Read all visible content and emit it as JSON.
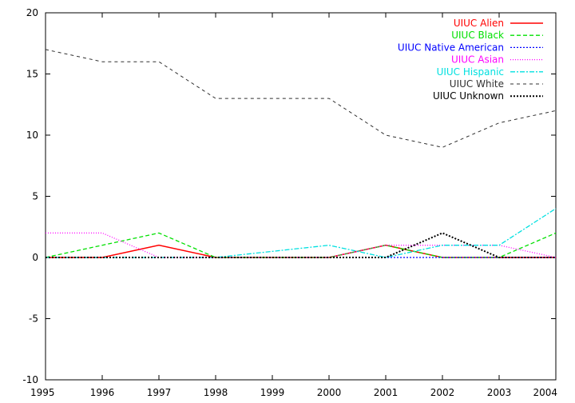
{
  "chart_data": {
    "type": "line",
    "x": [
      1995,
      1996,
      1997,
      1998,
      1999,
      2000,
      2001,
      2002,
      2003,
      2004
    ],
    "xlim": [
      1995,
      2004
    ],
    "ylim": [
      -10,
      20
    ],
    "xticks": [
      "1995",
      "1996",
      "1997",
      "1998",
      "1999",
      "2000",
      "2001",
      "2002",
      "2003",
      "2004"
    ],
    "yticks": [
      "-10",
      "-5",
      "0",
      "5",
      "10",
      "15",
      "20"
    ],
    "legend_position": "top-right",
    "grid": false,
    "series": [
      {
        "name": "UIUC Alien",
        "color": "#ff0000",
        "dash": "",
        "width": 1.5,
        "values": [
          0,
          0,
          1,
          0,
          0,
          0,
          1,
          0,
          0,
          0
        ]
      },
      {
        "name": "UIUC Black",
        "color": "#00e000",
        "dash": "5,3",
        "width": 1.3,
        "values": [
          0,
          1,
          2,
          0,
          0,
          0,
          1,
          0,
          0,
          2
        ]
      },
      {
        "name": "UIUC Native American",
        "color": "#0000ff",
        "dash": "2,2",
        "width": 1.3,
        "values": [
          0,
          0,
          0,
          0,
          0,
          0,
          0,
          0,
          0,
          0
        ]
      },
      {
        "name": "UIUC Asian",
        "color": "#ff00ff",
        "dash": "1,2",
        "width": 1.3,
        "values": [
          2,
          2,
          0,
          0,
          0,
          0,
          1,
          1,
          1,
          0
        ]
      },
      {
        "name": "UIUC Hispanic",
        "color": "#00e0e0",
        "dash": "6,2,2,2",
        "width": 1.3,
        "values": [
          0,
          0,
          0,
          0,
          0.5,
          1,
          0,
          1,
          1,
          4
        ]
      },
      {
        "name": "UIUC White",
        "color": "#303030",
        "dash": "4,4",
        "width": 1,
        "values": [
          17,
          16,
          16,
          13,
          13,
          13,
          10,
          9,
          11,
          12
        ]
      },
      {
        "name": "UIUC Unknown",
        "color": "#000000",
        "dash": "2,2",
        "width": 2,
        "values": [
          0,
          0,
          0,
          0,
          0,
          0,
          0,
          2,
          0,
          0
        ]
      }
    ]
  }
}
